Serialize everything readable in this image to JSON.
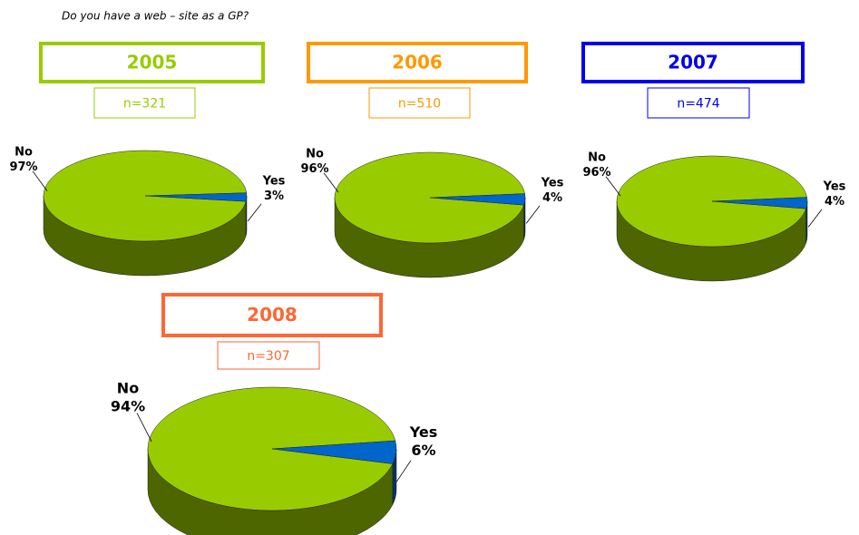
{
  "title": "Do you have a web – site as a GP?",
  "chart_data": [
    {
      "type": "pie",
      "title": "2005",
      "title_color": "#99cc00",
      "subtitle": "n=321",
      "categories": [
        "No",
        "Yes"
      ],
      "values": [
        97,
        3
      ],
      "value_labels": [
        "97%",
        "3%"
      ],
      "colors": [
        "#99cc00",
        "#0066cc"
      ]
    },
    {
      "type": "pie",
      "title": "2006",
      "title_color": "#ff9900",
      "subtitle": "n=510",
      "categories": [
        "No",
        "Yes"
      ],
      "values": [
        96,
        4
      ],
      "value_labels": [
        "96%",
        "4%"
      ],
      "colors": [
        "#99cc00",
        "#0066cc"
      ]
    },
    {
      "type": "pie",
      "title": "2007",
      "title_color": "#0000ee",
      "subtitle": "n=474",
      "categories": [
        "No",
        "Yes"
      ],
      "values": [
        96,
        4
      ],
      "value_labels": [
        "96%",
        "4%"
      ],
      "colors": [
        "#99cc00",
        "#0066cc"
      ]
    },
    {
      "type": "pie",
      "title": "2008",
      "title_color": "#ff6633",
      "subtitle": "n=307",
      "categories": [
        "No",
        "Yes"
      ],
      "values": [
        94,
        6
      ],
      "value_labels": [
        "94%",
        "6%"
      ],
      "colors": [
        "#99cc00",
        "#0066cc"
      ]
    }
  ]
}
